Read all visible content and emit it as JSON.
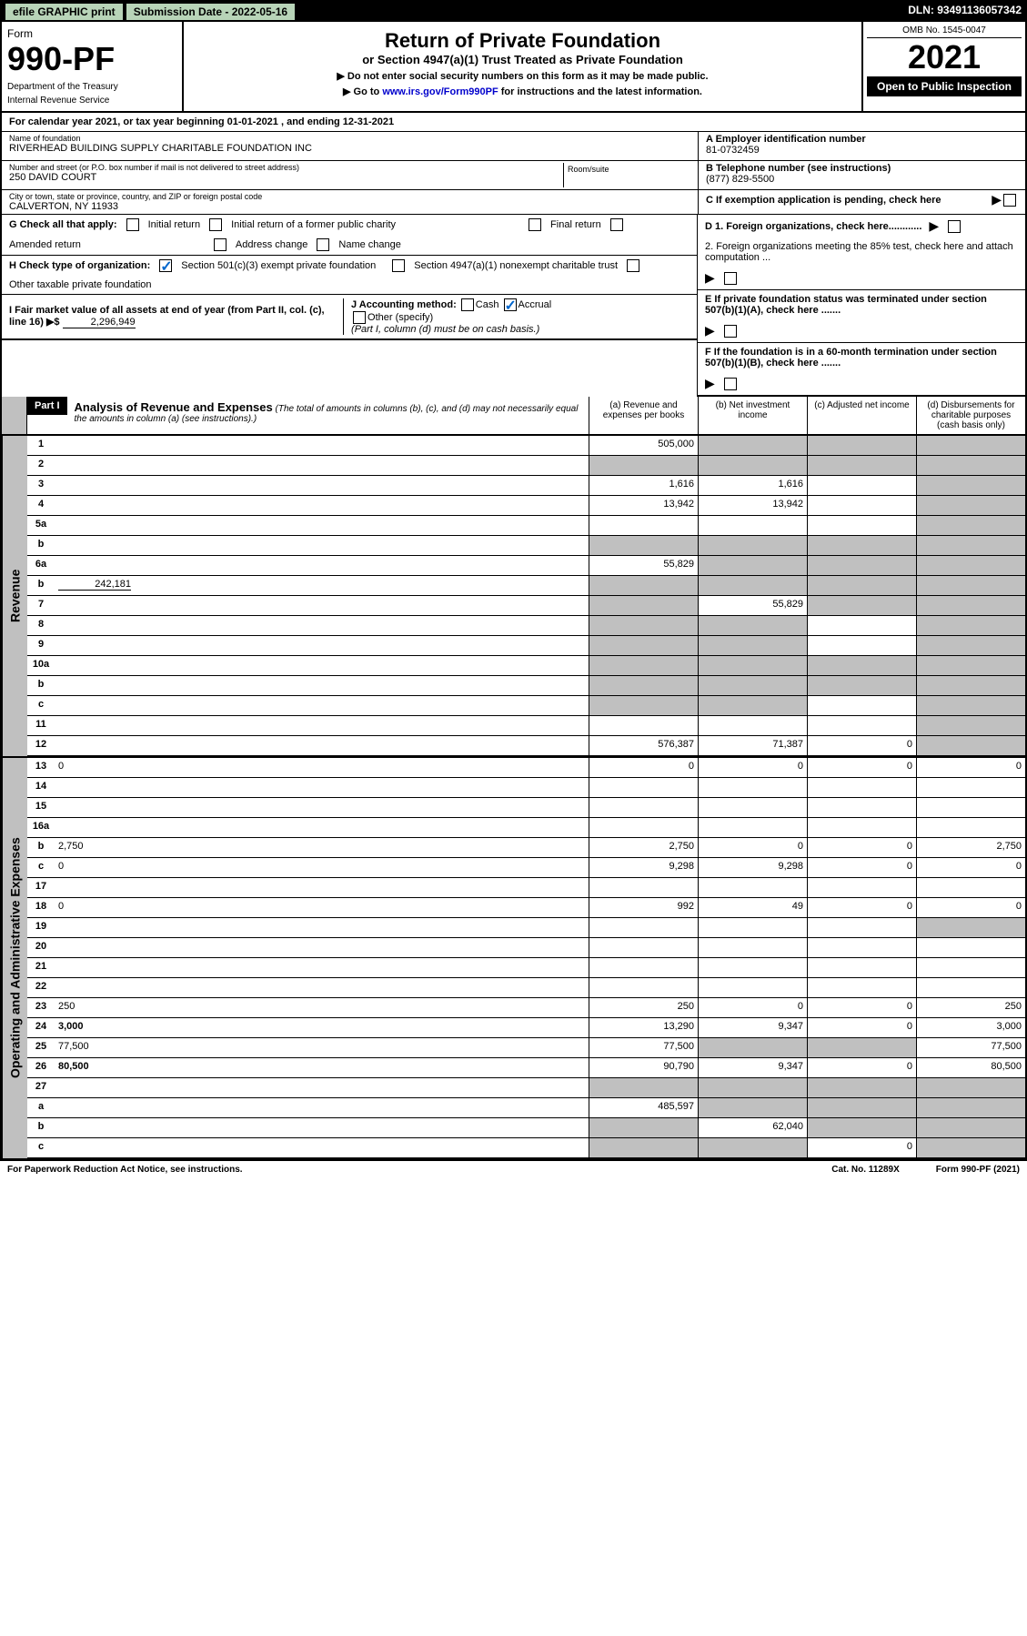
{
  "top": {
    "efile": "efile GRAPHIC print",
    "sub_date_label": "Submission Date - 2022-05-16",
    "dln": "DLN: 93491136057342"
  },
  "header": {
    "form_label": "Form",
    "form_number": "990-PF",
    "dept": "Department of the Treasury",
    "irs": "Internal Revenue Service",
    "title": "Return of Private Foundation",
    "subtitle": "or Section 4947(a)(1) Trust Treated as Private Foundation",
    "note1": "▶ Do not enter social security numbers on this form as it may be made public.",
    "note2_pre": "▶ Go to ",
    "note2_link": "www.irs.gov/Form990PF",
    "note2_post": " for instructions and the latest information.",
    "omb": "OMB No. 1545-0047",
    "year": "2021",
    "open_public": "Open to Public Inspection"
  },
  "cal_year": "For calendar year 2021, or tax year beginning 01-01-2021           , and ending 12-31-2021",
  "foundation": {
    "name_label": "Name of foundation",
    "name": "RIVERHEAD BUILDING SUPPLY CHARITABLE FOUNDATION INC",
    "addr_label": "Number and street (or P.O. box number if mail is not delivered to street address)",
    "addr": "250 DAVID COURT",
    "room_label": "Room/suite",
    "city_label": "City or town, state or province, country, and ZIP or foreign postal code",
    "city": "CALVERTON, NY  11933",
    "ein_label": "A Employer identification number",
    "ein": "81-0732459",
    "tel_label": "B Telephone number (see instructions)",
    "tel": "(877) 829-5500",
    "c_label": "C If exemption application is pending, check here"
  },
  "checks": {
    "g_label": "G Check all that apply:",
    "g1": "Initial return",
    "g2": "Initial return of a former public charity",
    "g3": "Final return",
    "g4": "Amended return",
    "g5": "Address change",
    "g6": "Name change",
    "h_label": "H Check type of organization:",
    "h1": "Section 501(c)(3) exempt private foundation",
    "h2": "Section 4947(a)(1) nonexempt charitable trust",
    "h3": "Other taxable private foundation",
    "i_label": "I Fair market value of all assets at end of year (from Part II, col. (c), line 16) ▶$",
    "i_value": "2,296,949",
    "j_label": "J Accounting method:",
    "j1": "Cash",
    "j2": "Accrual",
    "j3": "Other (specify)",
    "j_note": "(Part I, column (d) must be on cash basis.)",
    "d1": "D 1. Foreign organizations, check here............",
    "d2": "2. Foreign organizations meeting the 85% test, check here and attach computation ...",
    "e_label": "E  If private foundation status was terminated under section 507(b)(1)(A), check here .......",
    "f_label": "F  If the foundation is in a 60-month termination under section 507(b)(1)(B), check here .......",
    "arrow": "▶"
  },
  "part1": {
    "label": "Part I",
    "title": "Analysis of Revenue and Expenses",
    "title_note": " (The total of amounts in columns (b), (c), and (d) may not necessarily equal the amounts in column (a) (see instructions).)",
    "col_a": "(a)  Revenue and expenses per books",
    "col_b": "(b)  Net investment income",
    "col_c": "(c)  Adjusted net income",
    "col_d": "(d)  Disbursements for charitable purposes (cash basis only)"
  },
  "revenue_label": "Revenue",
  "expenses_label": "Operating and Administrative Expenses",
  "lines": {
    "1": {
      "n": "1",
      "d": "",
      "a": "505,000",
      "b": "",
      "c": "",
      "bs": true,
      "cs": true,
      "ds": true
    },
    "2": {
      "n": "2",
      "d": "",
      "a": "",
      "b": "",
      "c": "",
      "as": true,
      "bs": true,
      "cs": true,
      "ds": true
    },
    "3": {
      "n": "3",
      "d": "",
      "a": "1,616",
      "b": "1,616",
      "c": "",
      "ds": true
    },
    "4": {
      "n": "4",
      "d": "",
      "a": "13,942",
      "b": "13,942",
      "c": "",
      "ds": true
    },
    "5a": {
      "n": "5a",
      "d": "",
      "a": "",
      "b": "",
      "c": "",
      "ds": true
    },
    "5b": {
      "n": "b",
      "d": "",
      "a": "",
      "b": "",
      "c": "",
      "as": true,
      "bs": true,
      "cs": true,
      "ds": true
    },
    "6a": {
      "n": "6a",
      "d": "",
      "a": "55,829",
      "b": "",
      "c": "",
      "bs": true,
      "cs": true,
      "ds": true
    },
    "6b": {
      "n": "b",
      "d": "",
      "v": "242,181",
      "a": "",
      "b": "",
      "c": "",
      "as": true,
      "bs": true,
      "cs": true,
      "ds": true
    },
    "7": {
      "n": "7",
      "d": "",
      "a": "",
      "b": "55,829",
      "c": "",
      "as": true,
      "cs": true,
      "ds": true
    },
    "8": {
      "n": "8",
      "d": "",
      "a": "",
      "b": "",
      "c": "",
      "as": true,
      "bs": true,
      "ds": true
    },
    "9": {
      "n": "9",
      "d": "",
      "a": "",
      "b": "",
      "c": "",
      "as": true,
      "bs": true,
      "ds": true
    },
    "10a": {
      "n": "10a",
      "d": "",
      "a": "",
      "b": "",
      "c": "",
      "as": true,
      "bs": true,
      "cs": true,
      "ds": true
    },
    "10b": {
      "n": "b",
      "d": "",
      "a": "",
      "b": "",
      "c": "",
      "as": true,
      "bs": true,
      "cs": true,
      "ds": true
    },
    "10c": {
      "n": "c",
      "d": "",
      "a": "",
      "b": "",
      "c": "",
      "as": true,
      "bs": true,
      "ds": true
    },
    "11": {
      "n": "11",
      "d": "",
      "a": "",
      "b": "",
      "c": "",
      "ds": true
    },
    "12": {
      "n": "12",
      "d": "",
      "a": "576,387",
      "b": "71,387",
      "c": "0",
      "ds": true,
      "bold": true
    },
    "13": {
      "n": "13",
      "d": "0",
      "a": "0",
      "b": "0",
      "c": "0"
    },
    "14": {
      "n": "14",
      "d": "",
      "a": "",
      "b": "",
      "c": ""
    },
    "15": {
      "n": "15",
      "d": "",
      "a": "",
      "b": "",
      "c": ""
    },
    "16a": {
      "n": "16a",
      "d": "",
      "a": "",
      "b": "",
      "c": ""
    },
    "16b": {
      "n": "b",
      "d": "2,750",
      "a": "2,750",
      "b": "0",
      "c": "0"
    },
    "16c": {
      "n": "c",
      "d": "0",
      "a": "9,298",
      "b": "9,298",
      "c": "0"
    },
    "17": {
      "n": "17",
      "d": "",
      "a": "",
      "b": "",
      "c": ""
    },
    "18": {
      "n": "18",
      "d": "0",
      "a": "992",
      "b": "49",
      "c": "0"
    },
    "19": {
      "n": "19",
      "d": "",
      "a": "",
      "b": "",
      "c": "",
      "ds": true
    },
    "20": {
      "n": "20",
      "d": "",
      "a": "",
      "b": "",
      "c": ""
    },
    "21": {
      "n": "21",
      "d": "",
      "a": "",
      "b": "",
      "c": ""
    },
    "22": {
      "n": "22",
      "d": "",
      "a": "",
      "b": "",
      "c": ""
    },
    "23": {
      "n": "23",
      "d": "250",
      "a": "250",
      "b": "0",
      "c": "0"
    },
    "24": {
      "n": "24",
      "d": "3,000",
      "a": "13,290",
      "b": "9,347",
      "c": "0",
      "bold": true
    },
    "25": {
      "n": "25",
      "d": "77,500",
      "a": "77,500",
      "b": "",
      "c": "",
      "bs": true,
      "cs": true
    },
    "26": {
      "n": "26",
      "d": "80,500",
      "a": "90,790",
      "b": "9,347",
      "c": "0",
      "bold": true
    },
    "27": {
      "n": "27",
      "d": "",
      "a": "",
      "b": "",
      "c": "",
      "as": true,
      "bs": true,
      "cs": true,
      "ds": true
    },
    "27a": {
      "n": "a",
      "d": "",
      "a": "485,597",
      "b": "",
      "c": "",
      "bs": true,
      "cs": true,
      "ds": true,
      "bold": true
    },
    "27b": {
      "n": "b",
      "d": "",
      "a": "",
      "b": "62,040",
      "c": "",
      "as": true,
      "cs": true,
      "ds": true,
      "bold": true
    },
    "27c": {
      "n": "c",
      "d": "",
      "a": "",
      "b": "",
      "c": "0",
      "as": true,
      "bs": true,
      "ds": true,
      "bold": true
    }
  },
  "footer": {
    "left": "For Paperwork Reduction Act Notice, see instructions.",
    "center": "Cat. No. 11289X",
    "right": "Form 990-PF (2021)"
  }
}
